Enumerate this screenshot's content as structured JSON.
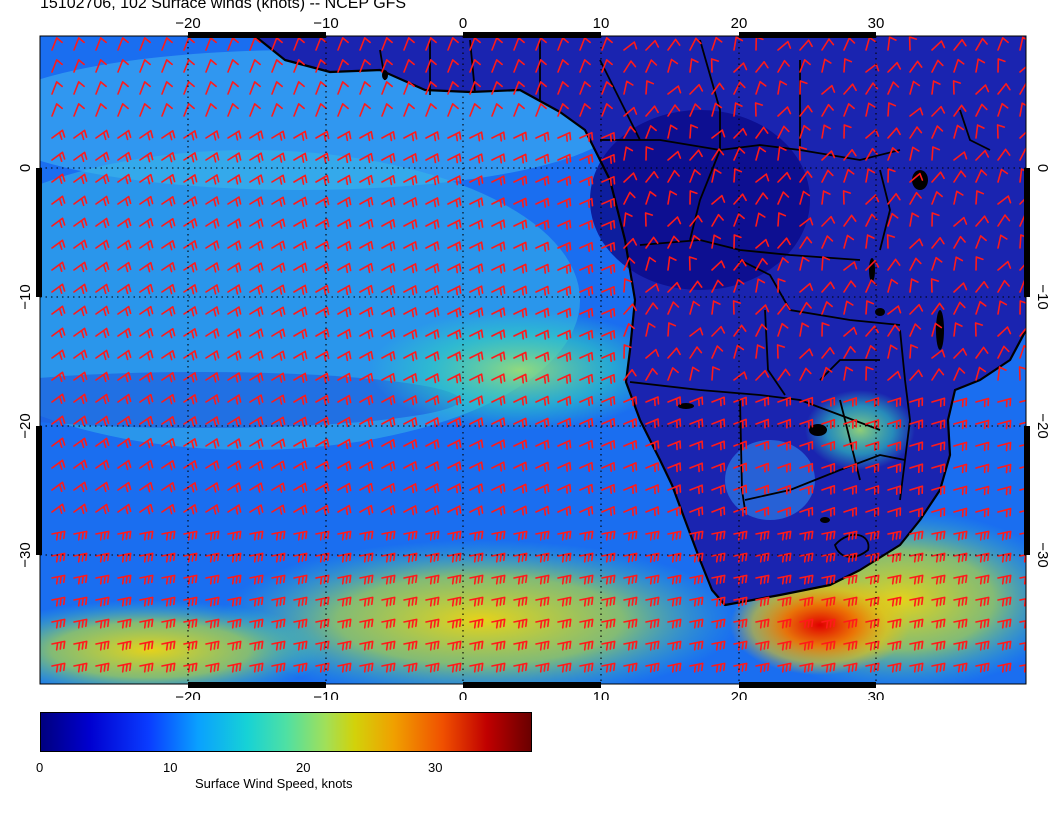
{
  "title": "15102706, 102 Surface winds (knots) -- NCEP GFS",
  "map": {
    "lon_ticks": [
      "−20",
      "−10",
      "0",
      "10",
      "20",
      "30"
    ],
    "lat_ticks": [
      "0",
      "−10",
      "−20",
      "−30"
    ],
    "barb_color": "#ff1a1a",
    "coast_color": "#000000"
  },
  "colorbar": {
    "label": "Surface Wind Speed, knots",
    "ticks": [
      "0",
      "10",
      "20",
      "30"
    ],
    "range": [
      0,
      37
    ]
  }
}
